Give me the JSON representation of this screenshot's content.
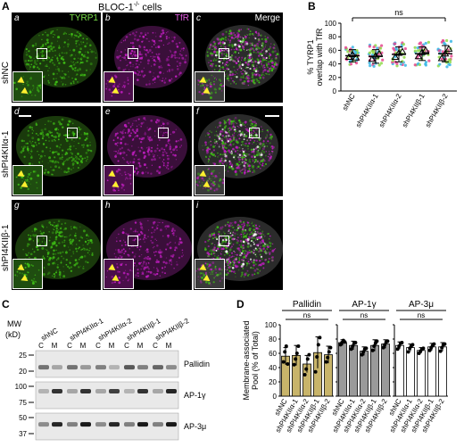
{
  "panel_a": {
    "label": "A",
    "title": "BLOC-1",
    "title_sup": "-/-",
    "title_suffix": " cells",
    "rows": [
      {
        "label": "shNC",
        "tiles": [
          {
            "letter": "a",
            "channel": "TYRP1",
            "channel_color": "#7be14a"
          },
          {
            "letter": "b",
            "channel": "TfR",
            "channel_color": "#e35ee3"
          },
          {
            "letter": "c",
            "channel": "Merge",
            "channel_color": "#ffffff"
          }
        ]
      },
      {
        "label": "shPI4KIIα-1",
        "tiles": [
          {
            "letter": "d",
            "channel": "",
            "channel_color": "#7be14a"
          },
          {
            "letter": "e",
            "channel": "",
            "channel_color": "#e35ee3"
          },
          {
            "letter": "f",
            "channel": "",
            "channel_color": "#ffffff"
          }
        ]
      },
      {
        "label": "shPI4KIIβ-1",
        "tiles": [
          {
            "letter": "g",
            "channel": "",
            "channel_color": "#7be14a"
          },
          {
            "letter": "h",
            "channel": "",
            "channel_color": "#e35ee3"
          },
          {
            "letter": "i",
            "channel": "",
            "channel_color": "#ffffff"
          }
        ]
      }
    ],
    "colors": {
      "green": "#3fbf16",
      "magenta": "#c21ec2",
      "arrow": "#ffef2f"
    }
  },
  "panel_b": {
    "label": "B",
    "ns": "ns",
    "chart_data": {
      "type": "scatter",
      "ylabel_line1": "% TYRP1",
      "ylabel_line2": "overlap with TfR",
      "categories": [
        "shNC",
        "shPI4KIIα-1",
        "shPI4KIIα-2",
        "shPI4KIIβ-1",
        "shPI4KIIβ-2"
      ],
      "ylim": [
        0,
        100
      ],
      "yticks": [
        0,
        20,
        40,
        60,
        80,
        100
      ],
      "means": [
        52,
        51,
        54,
        55,
        55
      ],
      "sd": [
        9,
        10,
        11,
        10,
        12
      ],
      "replicate_means": [
        [
          50,
          54,
          49
        ],
        [
          47,
          52,
          55
        ],
        [
          50,
          56,
          58
        ],
        [
          51,
          57,
          60
        ],
        [
          48,
          55,
          62
        ]
      ],
      "point_colors": [
        "#39b7e5",
        "#e6468f",
        "#8fd94a"
      ],
      "spread": [
        [
          38,
          66
        ],
        [
          36,
          68
        ],
        [
          36,
          72
        ],
        [
          38,
          72
        ],
        [
          34,
          76
        ]
      ]
    }
  },
  "panel_c": {
    "label": "C",
    "mw_label": "MW",
    "kd_label": "(kD)",
    "lanes": [
      "shNC",
      "shPI4KIIα-1",
      "shPI4KIIα-2",
      "shPI4KIIβ-1",
      "shPI4KIIβ-2"
    ],
    "fraction_labels": [
      "C",
      "M"
    ],
    "blots": [
      {
        "name": "Pallidin",
        "markers": [
          "25",
          "20"
        ]
      },
      {
        "name": "AP-1γ",
        "markers": [
          "100",
          "75"
        ]
      },
      {
        "name": "AP-3μ",
        "markers": [
          "50",
          "37"
        ]
      }
    ]
  },
  "panel_d": {
    "label": "D",
    "ns": "ns",
    "chart_data": {
      "type": "bar",
      "ylabel_line1": "Membrane-associated",
      "ylabel_line2": "Pool (% of Total)",
      "ylim": [
        0,
        100
      ],
      "yticks": [
        0,
        20,
        40,
        60,
        80,
        100
      ],
      "categories": [
        "shNC",
        "shPI4KIIα-1",
        "shPI4KIIα-2",
        "shPI4KIIβ-1",
        "shPI4KIIβ-2"
      ],
      "groups": [
        {
          "name": "Pallidin",
          "color": "#c8b46a",
          "values": [
            56,
            57,
            45,
            61,
            58
          ],
          "errors": [
            12,
            14,
            12,
            22,
            12
          ],
          "points": [
            [
              48,
              62,
              70,
              45
            ],
            [
              44,
              52,
              60,
              70
            ],
            [
              30,
              38,
              52,
              58
            ],
            [
              34,
              55,
              72,
              82
            ],
            [
              48,
              54,
              62,
              68
            ]
          ]
        },
        {
          "name": "AP-1γ",
          "color": "#9a9a9a",
          "values": [
            75,
            71,
            63,
            71,
            73
          ],
          "errors": [
            4,
            6,
            6,
            8,
            6
          ],
          "points": [
            [
              72,
              75,
              78,
              76
            ],
            [
              66,
              70,
              74,
              75
            ],
            [
              58,
              62,
              66,
              67
            ],
            [
              64,
              70,
              74,
              77
            ],
            [
              68,
              72,
              76,
              77
            ]
          ]
        },
        {
          "name": "AP-3μ",
          "color": "#ffffff",
          "values": [
            71,
            68,
            64,
            69,
            69
          ],
          "errors": [
            5,
            5,
            4,
            5,
            6
          ],
          "points": [
            [
              66,
              70,
              74,
              75
            ],
            [
              62,
              67,
              70,
              72
            ],
            [
              60,
              63,
              66,
              67
            ],
            [
              64,
              68,
              71,
              73
            ],
            [
              63,
              68,
              72,
              73
            ]
          ]
        }
      ]
    }
  }
}
